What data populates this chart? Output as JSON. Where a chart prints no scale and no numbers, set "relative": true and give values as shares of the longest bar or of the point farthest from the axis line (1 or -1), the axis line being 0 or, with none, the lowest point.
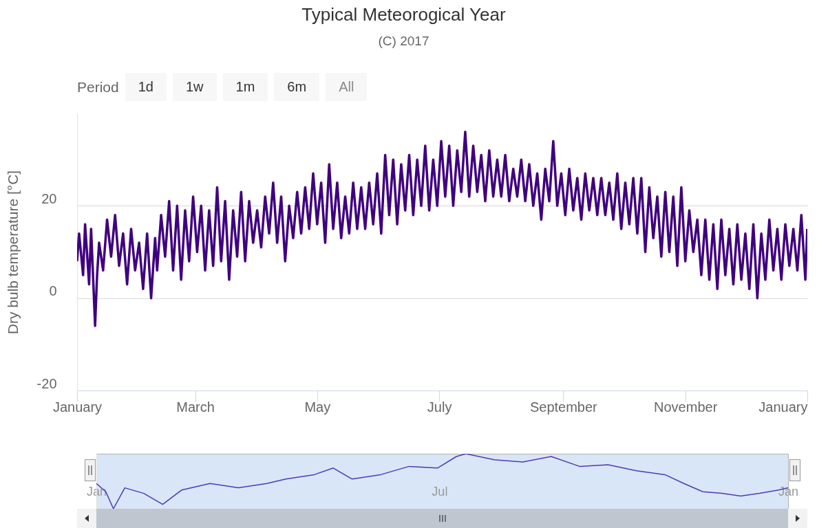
{
  "chart_data": [
    {
      "type": "line",
      "title": "Typical Meteorogical Year",
      "subtitle": "(C) 2017",
      "ylabel": "Dry bulb temperature [°C]",
      "annotations": [
        "Period",
        "1d",
        "1w",
        "1m",
        "6m",
        "All"
      ],
      "x": [
        "2017-01-01",
        "2017-01-02",
        "2017-01-04",
        "2017-01-05",
        "2017-01-07",
        "2017-01-08",
        "2017-01-10",
        "2017-01-11",
        "2017-01-12",
        "2017-01-14",
        "2017-01-16",
        "2017-01-18",
        "2017-01-20",
        "2017-01-22",
        "2017-01-24",
        "2017-01-26",
        "2017-01-28",
        "2017-01-30",
        "2017-02-01",
        "2017-02-03",
        "2017-02-05",
        "2017-02-07",
        "2017-02-09",
        "2017-02-10",
        "2017-02-12",
        "2017-02-14",
        "2017-02-16",
        "2017-02-18",
        "2017-02-20",
        "2017-02-22",
        "2017-02-24",
        "2017-02-26",
        "2017-02-28",
        "2017-03-02",
        "2017-03-04",
        "2017-03-06",
        "2017-03-08",
        "2017-03-10",
        "2017-03-12",
        "2017-03-14",
        "2017-03-16",
        "2017-03-18",
        "2017-03-20",
        "2017-03-22",
        "2017-03-24",
        "2017-03-26",
        "2017-03-28",
        "2017-03-30",
        "2017-04-01",
        "2017-04-03",
        "2017-04-05",
        "2017-04-07",
        "2017-04-09",
        "2017-04-11",
        "2017-04-13",
        "2017-04-15",
        "2017-04-17",
        "2017-04-19",
        "2017-04-21",
        "2017-04-23",
        "2017-04-25",
        "2017-04-27",
        "2017-04-29",
        "2017-05-01",
        "2017-05-03",
        "2017-05-05",
        "2017-05-07",
        "2017-05-09",
        "2017-05-11",
        "2017-05-13",
        "2017-05-15",
        "2017-05-17",
        "2017-05-19",
        "2017-05-21",
        "2017-05-23",
        "2017-05-25",
        "2017-05-27",
        "2017-05-29",
        "2017-05-31",
        "2017-06-02",
        "2017-06-04",
        "2017-06-06",
        "2017-06-08",
        "2017-06-10",
        "2017-06-12",
        "2017-06-14",
        "2017-06-16",
        "2017-06-18",
        "2017-06-20",
        "2017-06-22",
        "2017-06-24",
        "2017-06-26",
        "2017-06-28",
        "2017-06-30",
        "2017-07-02",
        "2017-07-04",
        "2017-07-06",
        "2017-07-08",
        "2017-07-10",
        "2017-07-12",
        "2017-07-14",
        "2017-07-16",
        "2017-07-18",
        "2017-07-20",
        "2017-07-22",
        "2017-07-24",
        "2017-07-26",
        "2017-07-28",
        "2017-07-30",
        "2017-08-01",
        "2017-08-03",
        "2017-08-05",
        "2017-08-07",
        "2017-08-09",
        "2017-08-11",
        "2017-08-13",
        "2017-08-15",
        "2017-08-17",
        "2017-08-19",
        "2017-08-21",
        "2017-08-23",
        "2017-08-25",
        "2017-08-27",
        "2017-08-29",
        "2017-08-31",
        "2017-09-02",
        "2017-09-04",
        "2017-09-06",
        "2017-09-08",
        "2017-09-10",
        "2017-09-12",
        "2017-09-14",
        "2017-09-16",
        "2017-09-18",
        "2017-09-20",
        "2017-09-22",
        "2017-09-24",
        "2017-09-26",
        "2017-09-28",
        "2017-09-30",
        "2017-10-02",
        "2017-10-04",
        "2017-10-06",
        "2017-10-08",
        "2017-10-10",
        "2017-10-12",
        "2017-10-14",
        "2017-10-16",
        "2017-10-18",
        "2017-10-20",
        "2017-10-22",
        "2017-10-24",
        "2017-10-26",
        "2017-10-28",
        "2017-10-30",
        "2017-11-01",
        "2017-11-03",
        "2017-11-05",
        "2017-11-07",
        "2017-11-09",
        "2017-11-11",
        "2017-11-13",
        "2017-11-15",
        "2017-11-17",
        "2017-11-19",
        "2017-11-21",
        "2017-11-23",
        "2017-11-25",
        "2017-11-27",
        "2017-11-29",
        "2017-12-01",
        "2017-12-03",
        "2017-12-05",
        "2017-12-07",
        "2017-12-09",
        "2017-12-11",
        "2017-12-13",
        "2017-12-15",
        "2017-12-17",
        "2017-12-19",
        "2017-12-21",
        "2017-12-23",
        "2017-12-25",
        "2017-12-27",
        "2017-12-29",
        "2017-12-31",
        "2017-12-31T23:00"
      ],
      "values": [
        8,
        14,
        5,
        16,
        3,
        15,
        -6,
        5,
        12,
        6,
        17,
        9,
        18,
        7,
        14,
        3,
        15,
        6,
        12,
        2,
        14,
        0,
        13,
        6,
        18,
        9,
        21,
        6,
        20,
        4,
        19,
        8,
        22,
        10,
        20,
        6,
        19,
        7,
        24,
        8,
        21,
        4,
        19,
        9,
        23,
        8,
        21,
        12,
        19,
        11,
        22,
        14,
        25,
        12,
        22,
        8,
        20,
        13,
        23,
        14,
        24,
        15,
        27,
        16,
        25,
        12,
        29,
        15,
        25,
        13,
        22,
        14,
        25,
        15,
        24,
        15,
        25,
        16,
        27,
        14,
        31,
        18,
        30,
        16,
        29,
        19,
        31,
        18,
        30,
        20,
        33,
        19,
        30,
        20,
        34,
        22,
        33,
        20,
        32,
        23,
        36,
        22,
        33,
        23,
        31,
        21,
        32,
        22,
        30,
        22,
        31,
        21,
        28,
        22,
        30,
        21,
        29,
        20,
        27,
        17,
        28,
        21,
        34,
        20,
        27,
        18,
        28,
        19,
        26,
        17,
        27,
        19,
        26,
        18,
        26,
        18,
        25,
        17,
        27,
        15,
        25,
        16,
        26,
        14,
        26,
        10,
        24,
        13,
        22,
        9,
        23,
        10,
        22,
        7,
        24,
        8,
        19,
        10,
        17,
        5,
        17,
        4,
        16,
        2,
        17,
        5,
        15,
        3,
        16,
        4,
        14,
        2,
        16,
        0,
        14,
        4,
        17,
        6,
        15,
        4,
        16,
        7,
        15,
        6,
        18,
        4,
        15
      ],
      "color": "#3f007f",
      "xlim": [
        "2017-01-01",
        "2018-01-01"
      ],
      "xticks": [
        {
          "value": "2017-01-01",
          "label": "January"
        },
        {
          "value": "2017-03-01",
          "label": "March"
        },
        {
          "value": "2017-05-01",
          "label": "May"
        },
        {
          "value": "2017-07-01",
          "label": "July"
        },
        {
          "value": "2017-09-01",
          "label": "September"
        },
        {
          "value": "2017-11-01",
          "label": "November"
        },
        {
          "value": "2018-01-01",
          "label": "January"
        }
      ],
      "ylim": [
        -20,
        40
      ],
      "yticks": [
        -20,
        0,
        20
      ],
      "grid": "y"
    },
    {
      "type": "line",
      "relative": true,
      "x": [
        "2017-01-01",
        "2017-01-06",
        "2017-01-10",
        "2017-01-16",
        "2017-01-26",
        "2017-02-05",
        "2017-02-15",
        "2017-03-02",
        "2017-03-17",
        "2017-04-01",
        "2017-04-11",
        "2017-04-26",
        "2017-05-06",
        "2017-05-16",
        "2017-05-31",
        "2017-06-15",
        "2017-06-30",
        "2017-07-10",
        "2017-07-15",
        "2017-07-30",
        "2017-08-14",
        "2017-08-29",
        "2017-09-13",
        "2017-09-28",
        "2017-10-13",
        "2017-10-28",
        "2017-11-07",
        "2017-11-17",
        "2017-11-27",
        "2017-12-07",
        "2017-12-17",
        "2017-12-27",
        "2017-12-31T23:00"
      ],
      "values": [
        0.46,
        0.31,
        0,
        0.38,
        0.28,
        0.08,
        0.34,
        0.46,
        0.38,
        0.46,
        0.54,
        0.62,
        0.74,
        0.54,
        0.62,
        0.77,
        0.74,
        0.95,
        1,
        0.89,
        0.85,
        0.95,
        0.77,
        0.8,
        0.69,
        0.62,
        0.46,
        0.31,
        0.28,
        0.23,
        0.28,
        0.34,
        0.38
      ],
      "color": "#4b3cb4",
      "xlim": [
        "2017-01-01",
        "2018-01-01"
      ],
      "xticks": [
        {
          "value": "2017-01-01",
          "label": "Jan"
        },
        {
          "value": "2017-07-01",
          "label": "Jul"
        },
        {
          "value": "2018-01-01",
          "label": "Jan"
        }
      ]
    }
  ]
}
